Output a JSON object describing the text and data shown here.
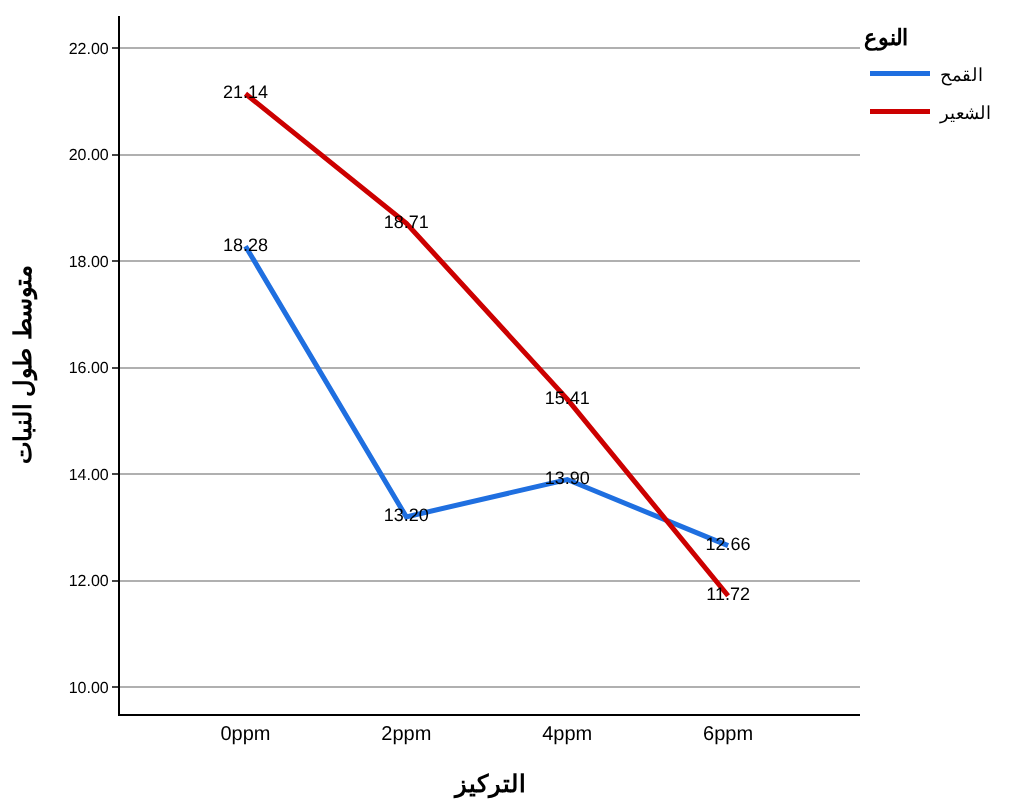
{
  "chart_data": {
    "type": "line",
    "xlabel": "التركيز",
    "ylabel": "متوسط طول النبات",
    "legend_title": "النوع",
    "categories": [
      "0ppm",
      "2ppm",
      "4ppm",
      "6ppm"
    ],
    "series": [
      {
        "name": "القمح",
        "color": "#1f6fe0",
        "values": [
          18.28,
          13.2,
          13.9,
          12.66
        ],
        "value_labels": [
          "18.28",
          "13.20",
          "13.90",
          "12.66"
        ]
      },
      {
        "name": "الشعير",
        "color": "#cc0000",
        "values": [
          21.14,
          18.71,
          15.41,
          11.72
        ],
        "value_labels": [
          "21.14",
          "18.71",
          "15.41",
          "11.72"
        ]
      }
    ],
    "ylim": [
      9.5,
      22.6
    ],
    "yticks": [
      {
        "value": 10,
        "label": "10.00"
      },
      {
        "value": 12,
        "label": "12.00"
      },
      {
        "value": 14,
        "label": "14.00"
      },
      {
        "value": 16,
        "label": "16.00"
      },
      {
        "value": 18,
        "label": "18.00"
      },
      {
        "value": 20,
        "label": "20.00"
      },
      {
        "value": 22,
        "label": "22.00"
      }
    ],
    "grid": "y",
    "legend": "top right",
    "marker": "none",
    "line_style": "solid"
  }
}
